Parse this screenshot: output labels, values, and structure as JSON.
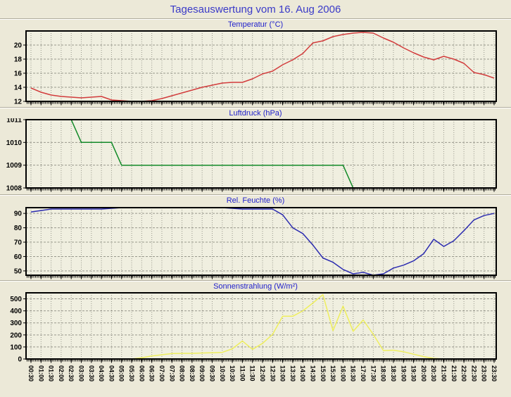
{
  "header": {
    "title": "Tagesauswertung vom 16. Aug 2006"
  },
  "colors": {
    "page_background": "#ece9d8",
    "plot_background": "#f0efe0",
    "frame": "#000000",
    "grid": "#98988c",
    "main_title_text": "#3a3ac8",
    "chart_title_text": "#2222cc",
    "axis_text": "#000000"
  },
  "chart_data": {
    "type": "line",
    "x_categories": [
      "00:30",
      "01:00",
      "01:30",
      "02:00",
      "02:30",
      "03:00",
      "03:30",
      "04:00",
      "04:30",
      "05:00",
      "05:30",
      "06:00",
      "06:30",
      "07:00",
      "07:30",
      "08:00",
      "08:30",
      "09:00",
      "09:30",
      "10:00",
      "10:30",
      "11:00",
      "11:30",
      "12:00",
      "12:30",
      "13:00",
      "13:30",
      "14:00",
      "14:30",
      "15:00",
      "15:30",
      "16:00",
      "16:30",
      "17:00",
      "17:30",
      "18:00",
      "18:30",
      "19:00",
      "19:30",
      "20:00",
      "20:30",
      "21:00",
      "21:30",
      "22:00",
      "22:30",
      "23:00",
      "23:30"
    ],
    "grid": "dashed-both-axes",
    "legend_position": "none",
    "charts": [
      {
        "title": "Temperatur (°C)",
        "color": "#d23c3c",
        "y_min": 12,
        "y_max": 22,
        "y_ticks": [
          12,
          14,
          16,
          18,
          20
        ],
        "values": [
          13.9,
          13.3,
          12.9,
          12.7,
          12.6,
          12.5,
          12.6,
          12.7,
          12.2,
          12.1,
          12.0,
          12.0,
          12.1,
          12.4,
          12.8,
          13.2,
          13.6,
          14.0,
          14.3,
          14.6,
          14.7,
          14.7,
          15.2,
          15.9,
          16.3,
          17.2,
          17.9,
          18.8,
          20.3,
          20.6,
          21.2,
          21.5,
          21.7,
          21.8,
          21.7,
          21.0,
          20.4,
          19.6,
          18.9,
          18.3,
          17.9,
          18.4,
          18.0,
          17.4,
          16.1,
          15.8,
          15.3
        ]
      },
      {
        "title": "Luftdruck (hPa)",
        "color": "#128a28",
        "y_min": 1008,
        "y_max": 1011,
        "y_ticks": [
          1008,
          1009,
          1010,
          1011
        ],
        "values": [
          null,
          null,
          null,
          null,
          1011,
          1010,
          1010,
          1010,
          1010,
          1009,
          1009,
          1009,
          1009,
          1009,
          1009,
          1009,
          1009,
          1009,
          1009,
          1009,
          1009,
          1009,
          1009,
          1009,
          1009,
          1009,
          1009,
          1009,
          1009,
          1009,
          1009,
          1009,
          1008,
          null,
          null,
          null,
          null,
          null,
          null,
          null,
          null,
          null,
          null,
          null,
          null,
          null,
          null
        ]
      },
      {
        "title": "Rel. Feuchte (%)",
        "color": "#2c2cb0",
        "y_min": 47,
        "y_max": 94,
        "y_ticks": [
          50,
          60,
          70,
          80,
          90
        ],
        "values": [
          91,
          92,
          93,
          93,
          93,
          93,
          93,
          93,
          93.5,
          94,
          94,
          94,
          94,
          94,
          94,
          94,
          94,
          94,
          94,
          94,
          93.5,
          93,
          93,
          93,
          93,
          89,
          80,
          76,
          68,
          59,
          56,
          51,
          48,
          49,
          47,
          48,
          52,
          54,
          57,
          62,
          72,
          67,
          71,
          78,
          85.5,
          88.5,
          90
        ]
      },
      {
        "title": "Sonnenstrahlung (W/m²)",
        "color": "#eeee5e",
        "y_min": 0,
        "y_max": 550,
        "y_ticks": [
          0,
          100,
          200,
          300,
          400,
          500
        ],
        "values": [
          0,
          0,
          0,
          0,
          0,
          0,
          0,
          0,
          0,
          0,
          0,
          10,
          25,
          35,
          45,
          47,
          47,
          50,
          52,
          55,
          85,
          150,
          80,
          130,
          205,
          355,
          355,
          400,
          465,
          535,
          235,
          440,
          230,
          325,
          205,
          70,
          73,
          60,
          40,
          20,
          5,
          0,
          0,
          0,
          0,
          0,
          0
        ]
      }
    ]
  }
}
